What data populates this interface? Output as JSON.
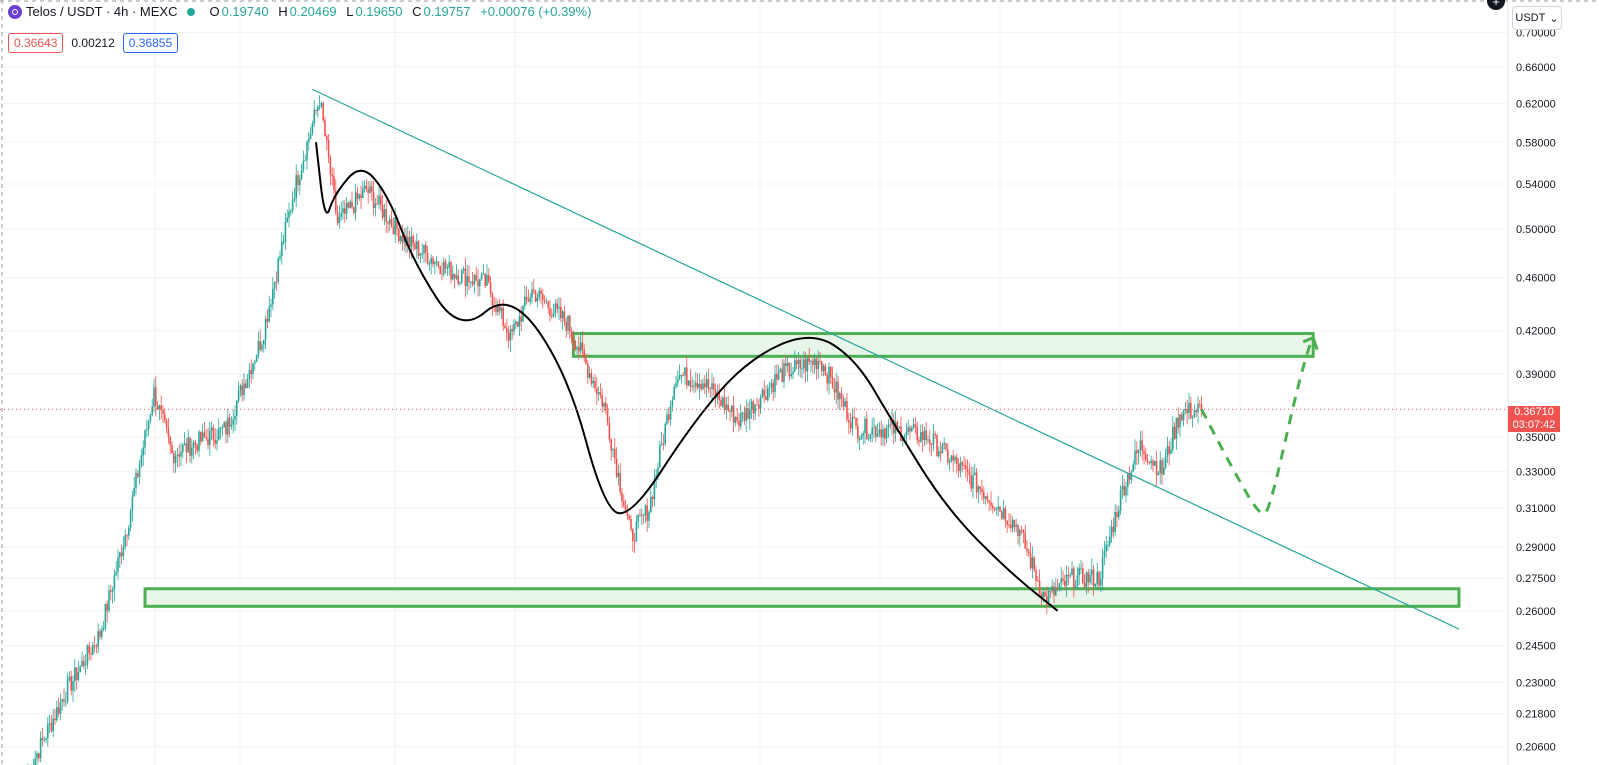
{
  "header": {
    "symbol": "Telos / USDT · 4h · MEXC",
    "open_label": "O",
    "open": "0.19740",
    "high_label": "H",
    "high": "0.20469",
    "low_label": "L",
    "low": "0.19650",
    "close_label": "C",
    "close": "0.19757",
    "change": "+0.00076 (+0.39%)"
  },
  "order_row": {
    "sell_price": "0.36643",
    "spread": "0.00212",
    "buy_price": "0.36855"
  },
  "currency_selector": {
    "label": "USDT"
  },
  "price_tag": {
    "price": "0.36710",
    "countdown": "03:07:42"
  },
  "colors": {
    "up": "#26a69a",
    "down": "#ef5350",
    "trendline": "#26a69a",
    "zone_fill": "#e8f5e9",
    "zone_stroke": "#4caf50",
    "projection": "#4caf50",
    "curve": "#000000",
    "grid": "#f0f3fa"
  },
  "chart_data": {
    "type": "candlestick",
    "y_scale": "log",
    "y_ticks": [
      "0.70000",
      "0.66000",
      "0.62000",
      "0.58000",
      "0.54000",
      "0.50000",
      "0.46000",
      "0.42000",
      "0.39000",
      "0.35000",
      "0.33000",
      "0.31000",
      "0.29000",
      "0.27500",
      "0.26000",
      "0.24500",
      "0.23000",
      "0.21800",
      "0.20600"
    ],
    "ylim": [
      0.2,
      0.72
    ],
    "last_price": 0.3671,
    "price_path": [
      {
        "bar": 0,
        "price": 0.197
      },
      {
        "bar": 20,
        "price": 0.225
      },
      {
        "bar": 40,
        "price": 0.25
      },
      {
        "bar": 55,
        "price": 0.3
      },
      {
        "bar": 70,
        "price": 0.378
      },
      {
        "bar": 80,
        "price": 0.34
      },
      {
        "bar": 110,
        "price": 0.355
      },
      {
        "bar": 130,
        "price": 0.415
      },
      {
        "bar": 148,
        "price": 0.535
      },
      {
        "bar": 162,
        "price": 0.625
      },
      {
        "bar": 172,
        "price": 0.505
      },
      {
        "bar": 188,
        "price": 0.535
      },
      {
        "bar": 210,
        "price": 0.49
      },
      {
        "bar": 235,
        "price": 0.465
      },
      {
        "bar": 255,
        "price": 0.455
      },
      {
        "bar": 268,
        "price": 0.415
      },
      {
        "bar": 280,
        "price": 0.45
      },
      {
        "bar": 300,
        "price": 0.425
      },
      {
        "bar": 320,
        "price": 0.37
      },
      {
        "bar": 335,
        "price": 0.295
      },
      {
        "bar": 345,
        "price": 0.31
      },
      {
        "bar": 360,
        "price": 0.39
      },
      {
        "bar": 375,
        "price": 0.385
      },
      {
        "bar": 395,
        "price": 0.36
      },
      {
        "bar": 418,
        "price": 0.39
      },
      {
        "bar": 440,
        "price": 0.4
      },
      {
        "bar": 460,
        "price": 0.355
      },
      {
        "bar": 480,
        "price": 0.355
      },
      {
        "bar": 500,
        "price": 0.35
      },
      {
        "bar": 530,
        "price": 0.32
      },
      {
        "bar": 550,
        "price": 0.3
      },
      {
        "bar": 565,
        "price": 0.265
      },
      {
        "bar": 580,
        "price": 0.275
      },
      {
        "bar": 595,
        "price": 0.275
      },
      {
        "bar": 608,
        "price": 0.32
      },
      {
        "bar": 618,
        "price": 0.345
      },
      {
        "bar": 630,
        "price": 0.33
      },
      {
        "bar": 640,
        "price": 0.365
      },
      {
        "bar": 652,
        "price": 0.367
      }
    ],
    "annotations": [
      {
        "type": "trendline",
        "from": [
          158,
          0.635
        ],
        "to": [
          795,
          0.252
        ]
      },
      {
        "type": "zone",
        "from_bar": 65,
        "to_bar": 795,
        "low": 0.262,
        "high": 0.27
      },
      {
        "type": "zone",
        "from_bar": 303,
        "to_bar": 714,
        "low": 0.402,
        "high": 0.418
      },
      {
        "type": "curve",
        "points": [
          [
            160,
            0.58
          ],
          [
            165,
            0.505
          ],
          [
            170,
            0.53
          ],
          [
            185,
            0.56
          ],
          [
            200,
            0.53
          ],
          [
            215,
            0.47
          ],
          [
            240,
            0.418
          ],
          [
            268,
            0.45
          ],
          [
            300,
            0.39
          ],
          [
            320,
            0.31
          ],
          [
            335,
            0.305
          ],
          [
            370,
            0.36
          ],
          [
            400,
            0.4
          ],
          [
            435,
            0.42
          ],
          [
            460,
            0.4
          ],
          [
            480,
            0.36
          ],
          [
            510,
            0.31
          ],
          [
            545,
            0.278
          ],
          [
            572,
            0.26
          ]
        ]
      },
      {
        "type": "projection",
        "points": [
          [
            652,
            0.367
          ],
          [
            670,
            0.33
          ],
          [
            685,
            0.305
          ],
          [
            690,
            0.31
          ],
          [
            705,
            0.38
          ],
          [
            712,
            0.41
          ],
          [
            714,
            0.415
          ]
        ]
      }
    ]
  }
}
